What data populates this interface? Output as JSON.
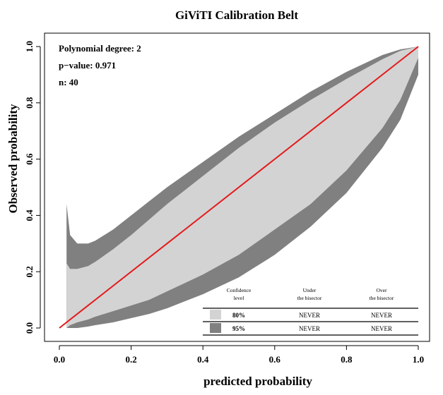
{
  "chart_data": {
    "type": "area",
    "title": "GiViTI Calibration Belt",
    "xlabel": "predicted probability",
    "ylabel": "Observed probability",
    "xlim": [
      0.0,
      1.0
    ],
    "ylim": [
      0.0,
      1.0
    ],
    "x_ticks": [
      "0.0",
      "0.2",
      "0.4",
      "0.6",
      "0.8",
      "1.0"
    ],
    "y_ticks": [
      "0.0",
      "0.2",
      "0.4",
      "0.6",
      "0.8",
      "1.0"
    ],
    "grid": false,
    "stats": [
      "Polynomial degree: 2",
      "p−value: 0.971",
      "n: 40"
    ],
    "bisector": {
      "x": [
        0.0,
        1.0
      ],
      "y": [
        0.0,
        1.0
      ],
      "color": "#e41a1c"
    },
    "series": [
      {
        "name": "95%",
        "color": "#808080",
        "x": [
          0.02,
          0.03,
          0.05,
          0.08,
          0.1,
          0.15,
          0.2,
          0.25,
          0.3,
          0.4,
          0.5,
          0.6,
          0.7,
          0.8,
          0.9,
          0.95,
          1.0
        ],
        "upper": [
          0.44,
          0.33,
          0.3,
          0.3,
          0.31,
          0.35,
          0.4,
          0.45,
          0.5,
          0.59,
          0.68,
          0.76,
          0.84,
          0.91,
          0.97,
          0.99,
          1.0
        ],
        "lower": [
          0.0,
          0.0,
          0.0,
          0.005,
          0.01,
          0.02,
          0.035,
          0.05,
          0.07,
          0.12,
          0.18,
          0.26,
          0.36,
          0.48,
          0.64,
          0.74,
          0.9
        ]
      },
      {
        "name": "80%",
        "color": "#d3d3d3",
        "x": [
          0.02,
          0.03,
          0.05,
          0.08,
          0.1,
          0.15,
          0.2,
          0.25,
          0.3,
          0.4,
          0.5,
          0.6,
          0.7,
          0.8,
          0.9,
          0.95,
          1.0
        ],
        "upper": [
          0.23,
          0.21,
          0.21,
          0.22,
          0.235,
          0.28,
          0.33,
          0.385,
          0.44,
          0.54,
          0.64,
          0.73,
          0.81,
          0.885,
          0.955,
          0.985,
          1.0
        ],
        "lower": [
          0.0,
          0.01,
          0.02,
          0.03,
          0.04,
          0.06,
          0.08,
          0.1,
          0.13,
          0.19,
          0.26,
          0.35,
          0.44,
          0.56,
          0.71,
          0.81,
          0.96
        ]
      }
    ],
    "legend": {
      "placement": "bottom-right",
      "headers": [
        "Confidence level",
        "Under the bisector",
        "Over the bisector"
      ],
      "header_lines": [
        [
          "Confidence",
          "level"
        ],
        [
          "Under",
          "the bisector"
        ],
        [
          "Over",
          "the bisector"
        ]
      ],
      "rows": [
        {
          "level": "80%",
          "under": "NEVER",
          "over": "NEVER",
          "color": "#d3d3d3"
        },
        {
          "level": "95%",
          "under": "NEVER",
          "over": "NEVER",
          "color": "#808080"
        }
      ]
    }
  }
}
